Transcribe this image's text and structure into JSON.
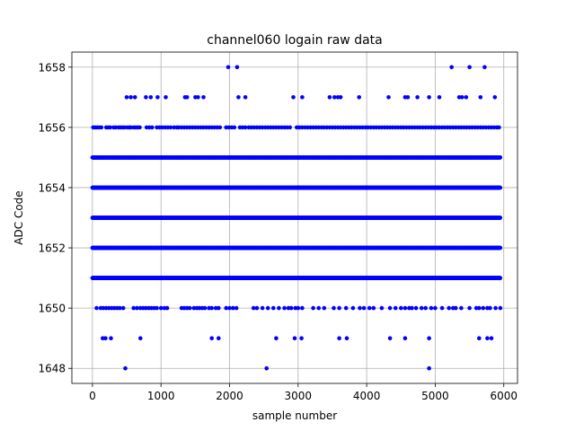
{
  "chart_data": {
    "type": "scatter",
    "title": "channel060 logain raw data",
    "xlabel": "sample number",
    "ylabel": "ADC Code",
    "xlim": [
      -300,
      6200
    ],
    "ylim": [
      1647.5,
      1658.5
    ],
    "xticks": [
      0,
      1000,
      2000,
      3000,
      4000,
      5000,
      6000
    ],
    "yticks": [
      1648,
      1650,
      1652,
      1654,
      1656,
      1658
    ],
    "grid": true,
    "marker_color": "#0000ff",
    "series": [
      {
        "dense_levels": [
          {
            "y": 1651,
            "x_start": 0,
            "x_end": 5950
          },
          {
            "y": 1652,
            "x_start": 0,
            "x_end": 5950
          },
          {
            "y": 1653,
            "x_start": 0,
            "x_end": 5950
          },
          {
            "y": 1654,
            "x_start": 0,
            "x_end": 5950
          },
          {
            "y": 1655,
            "x_start": 0,
            "x_end": 5950
          }
        ],
        "points": [
          {
            "y": 1658,
            "x": [
              1980,
              2110,
              5240,
              5500,
              5720
            ]
          },
          {
            "y": 1657,
            "x": [
              500,
              560,
              620,
              780,
              850,
              950,
              1070,
              1350,
              1380,
              1500,
              1540,
              1620,
              2130,
              2230,
              2930,
              3060,
              3460,
              3530,
              3580,
              3620,
              3890,
              4320,
              4560,
              4600,
              4740,
              4910,
              5060,
              5350,
              5390,
              5450,
              5660,
              5870
            ]
          },
          {
            "y": 1656,
            "x": [
              10,
              40,
              70,
              100,
              130,
              200,
              230,
              260,
              310,
              340,
              380,
              410,
              440,
              470,
              510,
              540,
              560,
              600,
              630,
              660,
              690,
              790,
              830,
              870,
              940,
              980,
              1020,
              1060,
              1100,
              1140,
              1190,
              1230,
              1260,
              1300,
              1340,
              1380,
              1420,
              1460,
              1500,
              1540,
              1580,
              1620,
              1660,
              1700,
              1740,
              1780,
              1820,
              1860,
              1950,
              1990,
              2030,
              2070,
              2150,
              2190,
              2230,
              2280,
              2320,
              2360,
              2400,
              2440,
              2480,
              2520,
              2560,
              2600,
              2640,
              2680,
              2720,
              2760,
              2800,
              2840,
              2880,
              2980,
              3020,
              3060,
              3100,
              3140,
              3180,
              3220,
              3260,
              3300,
              3340,
              3380,
              3420,
              3460,
              3500,
              3540,
              3580,
              3620,
              3660,
              3700,
              3740,
              3780,
              3820,
              3860,
              3900,
              3940,
              3980,
              4020,
              4060,
              4100,
              4140,
              4180,
              4220,
              4260,
              4300,
              4340,
              4380,
              4420,
              4460,
              4500,
              4540,
              4580,
              4620,
              4660,
              4700,
              4740,
              4780,
              4820,
              4860,
              4900,
              4940,
              4980,
              5020,
              5060,
              5100,
              5140,
              5180,
              5220,
              5260,
              5300,
              5340,
              5380,
              5420,
              5460,
              5500,
              5540,
              5580,
              5620,
              5660,
              5700,
              5740,
              5780,
              5820,
              5860,
              5900,
              5930
            ]
          },
          {
            "y": 1650,
            "x": [
              60,
              120,
              160,
              200,
              240,
              280,
              320,
              360,
              400,
              450,
              600,
              650,
              700,
              740,
              780,
              820,
              860,
              900,
              940,
              1000,
              1050,
              1090,
              1300,
              1340,
              1380,
              1420,
              1480,
              1520,
              1560,
              1600,
              1640,
              1700,
              1740,
              1800,
              1840,
              1950,
              2000,
              2050,
              2100,
              2350,
              2400,
              2480,
              2560,
              2640,
              2720,
              2800,
              2860,
              2900,
              2960,
              3000,
              3060,
              3220,
              3300,
              3380,
              3520,
              3600,
              3700,
              3800,
              3900,
              3960,
              4040,
              4100,
              4220,
              4340,
              4420,
              4500,
              4560,
              4620,
              4660,
              4720,
              4800,
              4860,
              4940,
              5000,
              5100,
              5200,
              5260,
              5300,
              5380,
              5500,
              5600,
              5640,
              5700,
              5760,
              5800,
              5880,
              5950
            ]
          },
          {
            "y": 1649,
            "x": [
              150,
              190,
              270,
              700,
              1740,
              1840,
              2680,
              2950,
              3050,
              3600,
              3710,
              4340,
              4560,
              4910,
              5640,
              5760,
              5820
            ]
          },
          {
            "y": 1648,
            "x": [
              480,
              2540,
              4910
            ]
          }
        ]
      }
    ]
  }
}
